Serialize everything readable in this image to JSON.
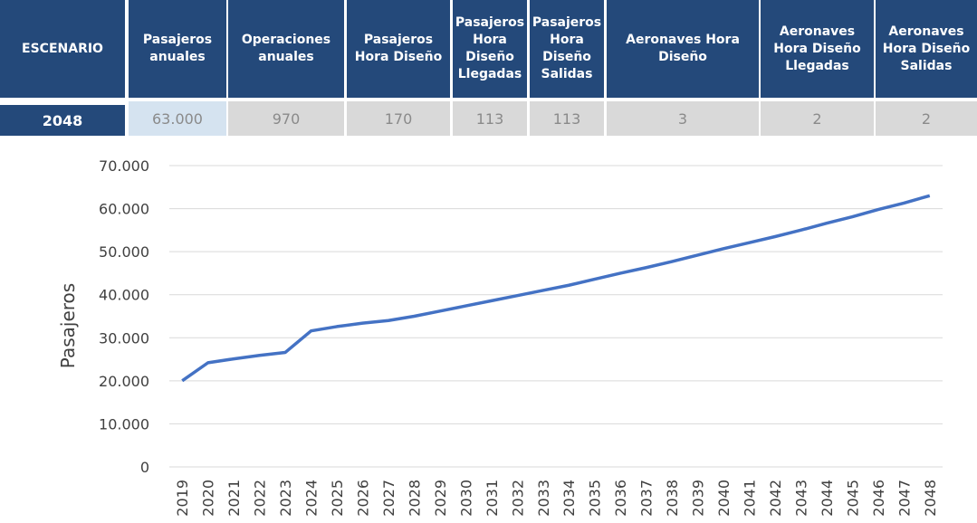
{
  "table": {
    "headers": [
      "ESCENARIO",
      "Pasajeros anuales",
      "Operaciones anuales",
      "Pasajeros Hora Diseño",
      "Pasajeros Hora Diseño Llegadas",
      "Pasajeros Hora Diseño Salidas",
      "Aeronaves Hora Diseño",
      "Aeronaves Hora Diseño Llegadas",
      "Aeronaves Hora Diseño Salidas"
    ],
    "rows": [
      [
        "2048",
        "63.000",
        "970",
        "170",
        "113",
        "113",
        "3",
        "2",
        "2"
      ]
    ]
  },
  "chart_data": {
    "type": "line",
    "ylabel": "Pasajeros",
    "categories": [
      "2019",
      "2020",
      "2021",
      "2022",
      "2023",
      "2024",
      "2025",
      "2026",
      "2027",
      "2028",
      "2029",
      "2030",
      "2031",
      "2032",
      "2033",
      "2034",
      "2035",
      "2036",
      "2037",
      "2038",
      "2039",
      "2040",
      "2041",
      "2042",
      "2043",
      "2044",
      "2045",
      "2046",
      "2047",
      "2048"
    ],
    "series": [
      {
        "color": "#4472c4",
        "values": [
          20000,
          24200,
          25100,
          25900,
          26600,
          31600,
          32600,
          33400,
          34000,
          35000,
          36200,
          37400,
          38600,
          39800,
          41000,
          42200,
          43600,
          45000,
          46300,
          47700,
          49200,
          50700,
          52100,
          53500,
          55000,
          56600,
          58100,
          59800,
          61300,
          63000
        ]
      }
    ],
    "ylim": [
      0,
      70000
    ],
    "yticks": [
      0,
      {
        "value": 10000,
        "label": "10.000"
      },
      {
        "value": 20000,
        "label": "20.000"
      },
      {
        "value": 30000,
        "label": "30.000"
      },
      {
        "value": 40000,
        "label": "40.000"
      },
      {
        "value": 50000,
        "label": "50.000"
      },
      {
        "value": 60000,
        "label": "60.000"
      },
      {
        "value": 70000,
        "label": "70.000"
      }
    ],
    "grid": true
  }
}
